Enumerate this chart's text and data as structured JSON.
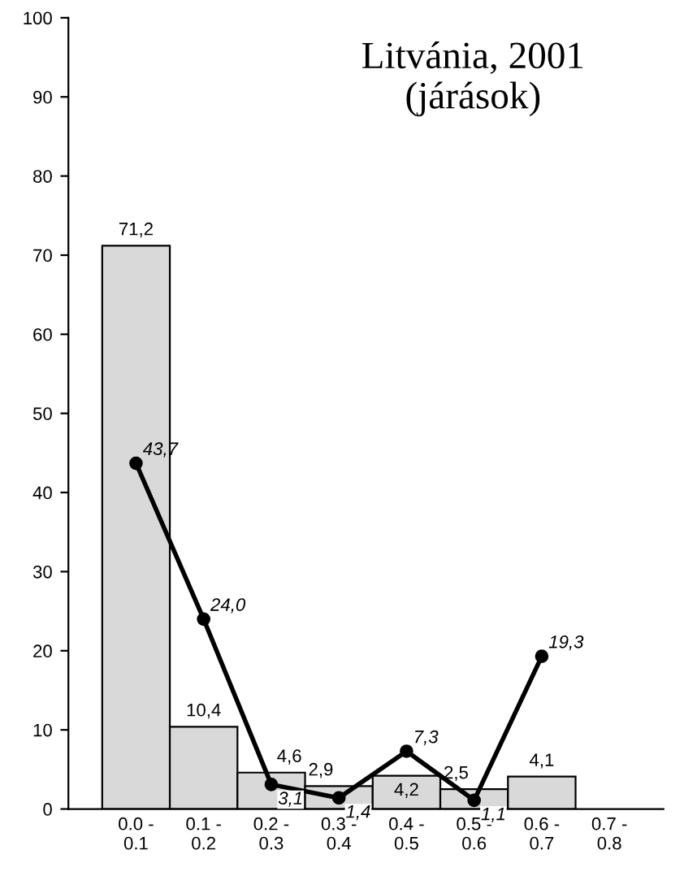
{
  "chart_data": {
    "type": "bar",
    "title": "Litvánia, 2001\n(járások)",
    "categories": [
      "0.0 - 0.1",
      "0.1 - 0.2",
      "0.2 - 0.3",
      "0.3 - 0.4",
      "0.4 - 0.5",
      "0.5 - 0.6",
      "0.6 - 0.7",
      "0.7 - 0.8"
    ],
    "series": [
      {
        "color": "#d9d9d9",
        "values": [
          71.2,
          10.4,
          4.6,
          2.9,
          4.2,
          2.5,
          4.1,
          null
        ],
        "value_labels": [
          "71,2",
          "10,4",
          "4,6",
          "2,9",
          "4,2",
          "2,5",
          "4,1",
          null
        ]
      },
      {
        "type": "line",
        "color": "#000000",
        "marker": "circle",
        "line_style": "solid",
        "values": [
          43.7,
          24.0,
          3.1,
          1.4,
          7.3,
          1.1,
          19.3,
          null
        ],
        "value_labels": [
          "43,7",
          "24,0",
          "3,1",
          "1,4",
          "7,3",
          "1,1",
          "19,3",
          null
        ]
      }
    ],
    "ylim": [
      0,
      100
    ],
    "yticks": [
      0,
      10,
      20,
      30,
      40,
      50,
      60,
      70,
      80,
      90,
      100
    ],
    "grid": false,
    "legend": false
  }
}
